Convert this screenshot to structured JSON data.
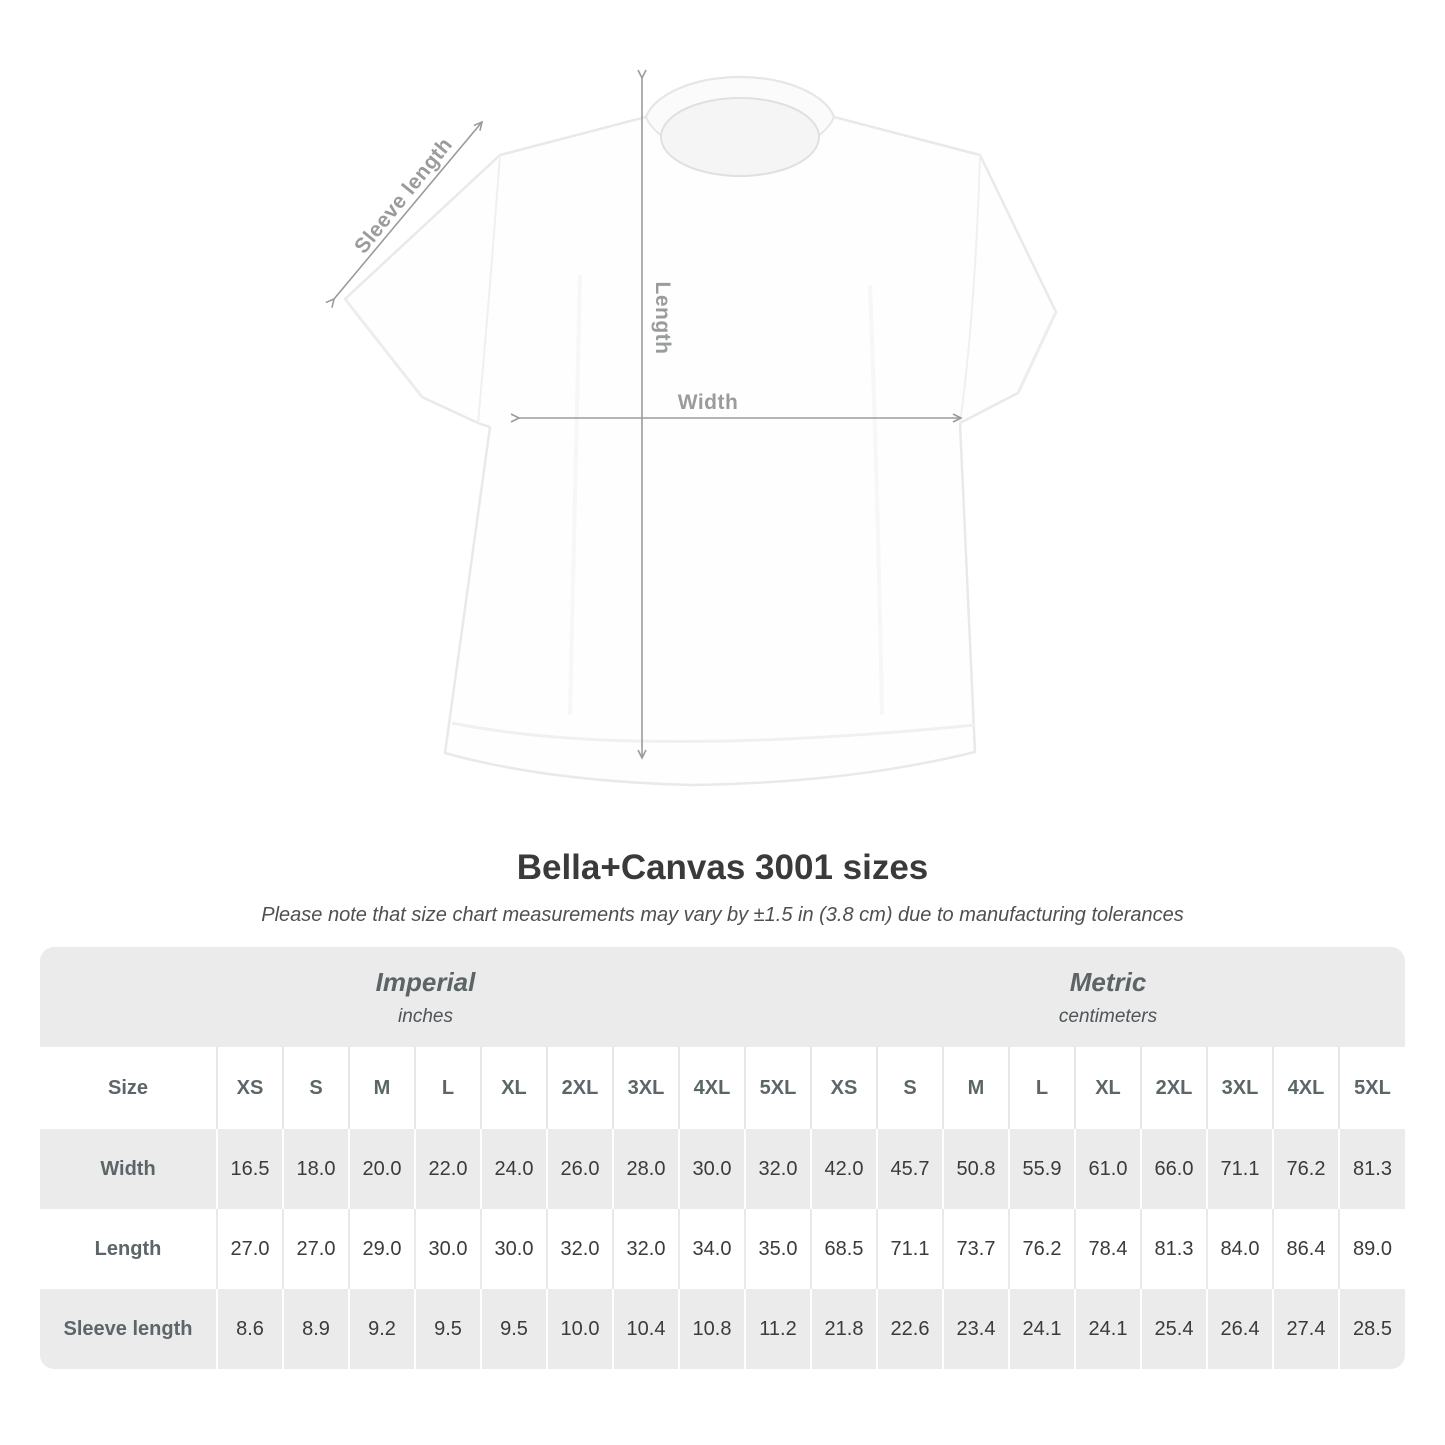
{
  "diagram": {
    "sleeve_label": "Sleeve length",
    "length_label": "Length",
    "width_label": "Width"
  },
  "title": "Bella+Canvas 3001 sizes",
  "subtitle": "Please note that size chart measurements may vary by ±1.5 in (3.8 cm) due to manufacturing tolerances",
  "table": {
    "sections": [
      {
        "label": "Imperial",
        "sublabel": "inches"
      },
      {
        "label": "Metric",
        "sublabel": "centimeters"
      }
    ],
    "size_header": "Size",
    "sizes": [
      "XS",
      "S",
      "M",
      "L",
      "XL",
      "2XL",
      "3XL",
      "4XL",
      "5XL"
    ],
    "rows": [
      {
        "label": "Width",
        "imperial": [
          "16.5",
          "18.0",
          "20.0",
          "22.0",
          "24.0",
          "26.0",
          "28.0",
          "30.0",
          "32.0"
        ],
        "metric": [
          "42.0",
          "45.7",
          "50.8",
          "55.9",
          "61.0",
          "66.0",
          "71.1",
          "76.2",
          "81.3"
        ]
      },
      {
        "label": "Length",
        "imperial": [
          "27.0",
          "27.0",
          "29.0",
          "30.0",
          "30.0",
          "32.0",
          "32.0",
          "34.0",
          "35.0"
        ],
        "metric": [
          "68.5",
          "71.1",
          "73.7",
          "76.2",
          "78.4",
          "81.3",
          "84.0",
          "86.4",
          "89.0"
        ]
      },
      {
        "label": "Sleeve length",
        "imperial": [
          "8.6",
          "8.9",
          "9.2",
          "9.5",
          "9.5",
          "10.0",
          "10.4",
          "10.8",
          "11.2"
        ],
        "metric": [
          "21.8",
          "22.6",
          "23.4",
          "24.1",
          "24.1",
          "25.4",
          "26.4",
          "27.4",
          "28.5"
        ]
      }
    ]
  },
  "chart_data": {
    "type": "table",
    "title": "Bella+Canvas 3001 sizes",
    "units": [
      "inches",
      "centimeters"
    ],
    "categories": [
      "XS",
      "S",
      "M",
      "L",
      "XL",
      "2XL",
      "3XL",
      "4XL",
      "5XL"
    ],
    "series": [
      {
        "name": "Width (in)",
        "values": [
          16.5,
          18.0,
          20.0,
          22.0,
          24.0,
          26.0,
          28.0,
          30.0,
          32.0
        ]
      },
      {
        "name": "Length (in)",
        "values": [
          27.0,
          27.0,
          29.0,
          30.0,
          30.0,
          32.0,
          32.0,
          34.0,
          35.0
        ]
      },
      {
        "name": "Sleeve length (in)",
        "values": [
          8.6,
          8.9,
          9.2,
          9.5,
          9.5,
          10.0,
          10.4,
          10.8,
          11.2
        ]
      },
      {
        "name": "Width (cm)",
        "values": [
          42.0,
          45.7,
          50.8,
          55.9,
          61.0,
          66.0,
          71.1,
          76.2,
          81.3
        ]
      },
      {
        "name": "Length (cm)",
        "values": [
          68.5,
          71.1,
          73.7,
          76.2,
          78.4,
          81.3,
          84.0,
          86.4,
          89.0
        ]
      },
      {
        "name": "Sleeve length (cm)",
        "values": [
          21.8,
          22.6,
          23.4,
          24.1,
          24.1,
          25.4,
          26.4,
          27.4,
          28.5
        ]
      }
    ]
  },
  "colors": {
    "arrow_gray": "#9b9b9b",
    "dim_label_gray": "#999b9d",
    "title_text": "#3a3a3a",
    "subtitle_text": "#4f4f4f",
    "band_bg": "#ebebeb",
    "row_alt_bg": "#ebebeb",
    "table_value_text": "#3b3b3b",
    "table_label_text": "#5c6668",
    "shirt_outline": "#e9e9e9"
  }
}
